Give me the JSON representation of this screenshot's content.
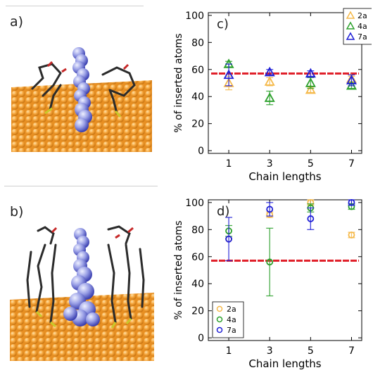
{
  "panels": {
    "a": {
      "label": "a)"
    },
    "b": {
      "label": "b)"
    }
  },
  "colors": {
    "series_2a": "#f5b94a",
    "series_4a": "#2ca02c",
    "series_7a": "#1f1fd6",
    "reference_line": "#e0202a",
    "gold_surface": "#f2a43a",
    "molecule_blue": "#8c93dd",
    "stick_dark": "#2b2b2b",
    "stick_red": "#c62828",
    "stick_yellow": "#c9c92a"
  },
  "icons": {
    "panel_a_image": "molecular-render-upright-icon",
    "panel_b_image": "molecular-render-inserted-icon"
  },
  "chart_data": [
    {
      "panel": "c)",
      "type": "scatter",
      "xlabel": "Chain lengths",
      "ylabel": "% of inserted atoms",
      "xlim": [
        0,
        7.5
      ],
      "ylim": [
        -2,
        102
      ],
      "xticks": [
        1,
        3,
        5,
        7
      ],
      "yticks": [
        0,
        20,
        40,
        60,
        80,
        100
      ],
      "legend_position": "top-right",
      "marker": "triangle",
      "reference_line": 57,
      "series": [
        {
          "name": "2a",
          "x": [
            1,
            3,
            5,
            7
          ],
          "y": [
            50,
            51,
            45,
            53
          ],
          "err": [
            5,
            3,
            2,
            2
          ]
        },
        {
          "name": "4a",
          "x": [
            1,
            3,
            5,
            7
          ],
          "y": [
            64,
            39,
            50,
            48
          ],
          "err": [
            2,
            5,
            4,
            2
          ]
        },
        {
          "name": "7a",
          "x": [
            1,
            3,
            5,
            7
          ],
          "y": [
            56,
            58,
            57,
            52
          ],
          "err": [
            8,
            2,
            2,
            4
          ]
        }
      ]
    },
    {
      "panel": "d)",
      "type": "scatter",
      "xlabel": "Chain lengths",
      "ylabel": "% of inserted atoms",
      "xlim": [
        0,
        7.5
      ],
      "ylim": [
        -2,
        102
      ],
      "xticks": [
        1,
        3,
        5,
        7
      ],
      "yticks": [
        0,
        20,
        40,
        60,
        80,
        100
      ],
      "legend_position": "bottom-left",
      "marker": "circle",
      "reference_line": 57,
      "series": [
        {
          "name": "2a",
          "x": [
            1,
            3,
            5,
            7
          ],
          "y": [
            73,
            91,
            100,
            76
          ],
          "err": [
            0,
            2,
            2,
            2
          ]
        },
        {
          "name": "4a",
          "x": [
            1,
            3,
            5,
            7
          ],
          "y": [
            79,
            56,
            96,
            97
          ],
          "err": [
            4,
            25,
            3,
            2
          ]
        },
        {
          "name": "7a",
          "x": [
            1,
            3,
            5,
            7
          ],
          "y": [
            73,
            95,
            88,
            100
          ],
          "err": [
            16,
            5,
            8,
            2
          ]
        }
      ]
    }
  ]
}
